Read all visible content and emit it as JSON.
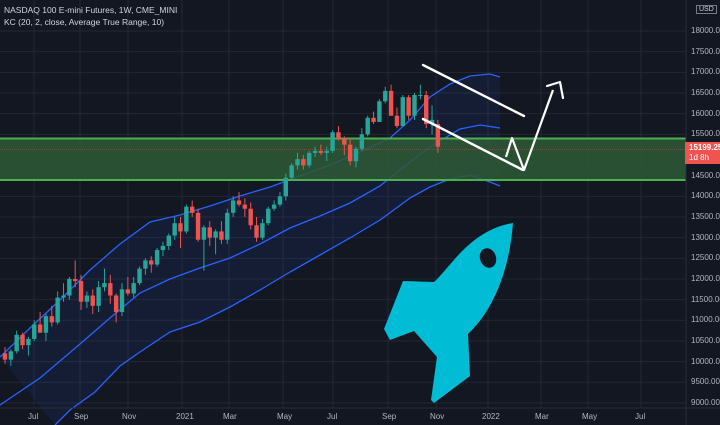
{
  "header": {
    "symbol_line": "NASDAQ 100 E-mini Futures, 1W, CME_MINI",
    "indicator_line": "KC (20, 2, close, Average True Range, 10)"
  },
  "price_axis": {
    "currency": "USD",
    "labels": [
      "18000.00",
      "17500.00",
      "17000.00",
      "16500.00",
      "16000.00",
      "15500.00",
      "14500.00",
      "14000.00",
      "13500.00",
      "13000.00",
      "12500.00",
      "12000.00",
      "11500.00",
      "11000.00",
      "10500.00",
      "10000.00",
      "9500.00",
      "9000.00"
    ],
    "current_price": "15199.25",
    "countdown": "1d 8h"
  },
  "time_axis": {
    "labels": [
      "Jul",
      "Sep",
      "Nov",
      "2021",
      "Mar",
      "May",
      "Jul",
      "Sep",
      "Nov",
      "2022",
      "Mar",
      "May",
      "Jul"
    ]
  },
  "colors": {
    "background": "#131722",
    "grid": "#242733",
    "up": "#26a69a",
    "down": "#ef5350",
    "keltner": "#2962ff",
    "zone_fill": "#2e5a36",
    "zone_border": "#4caf50",
    "rocket": "#00bcd4",
    "drawings": "#ffffff"
  },
  "chart_data": {
    "type": "candlestick",
    "title": "NASDAQ 100 E-mini Futures, 1W, CME_MINI",
    "indicator": "Keltner Channel (20, 2, close, ATR 10)",
    "x_ticks": [
      "Jul",
      "Sep",
      "Nov",
      "2021",
      "Mar",
      "May",
      "Jul",
      "Sep",
      "Nov",
      "2022",
      "Mar",
      "May",
      "Jul"
    ],
    "y_ticks": [
      9000,
      9500,
      10000,
      10500,
      11000,
      11500,
      12000,
      12500,
      13000,
      13500,
      14000,
      14500,
      15000,
      15500,
      16000,
      16500,
      17000,
      17500,
      18000
    ],
    "ylim": [
      8900,
      18300
    ],
    "last_price": 15199.25,
    "support_zone": [
      14450,
      15550
    ],
    "candles": [
      [
        10200,
        10350,
        9950,
        10050
      ],
      [
        10050,
        10300,
        9900,
        10250
      ],
      [
        10250,
        10750,
        10200,
        10650
      ],
      [
        10650,
        10700,
        10300,
        10400
      ],
      [
        10400,
        10600,
        10150,
        10550
      ],
      [
        10550,
        11000,
        10500,
        10900
      ],
      [
        10900,
        11200,
        10700,
        10700
      ],
      [
        10700,
        11150,
        10500,
        11100
      ],
      [
        11100,
        11350,
        10850,
        10950
      ],
      [
        10950,
        11700,
        10900,
        11550
      ],
      [
        11550,
        11900,
        11450,
        11600
      ],
      [
        11600,
        12050,
        11500,
        12000
      ],
      [
        12000,
        12450,
        11800,
        11950
      ],
      [
        11950,
        12100,
        11250,
        11450
      ],
      [
        11450,
        11700,
        11300,
        11600
      ],
      [
        11600,
        11750,
        11150,
        11350
      ],
      [
        11350,
        11950,
        11200,
        11800
      ],
      [
        11800,
        12250,
        11700,
        11900
      ],
      [
        11900,
        12100,
        11400,
        11600
      ],
      [
        11600,
        11650,
        10950,
        11200
      ],
      [
        11200,
        11900,
        11100,
        11750
      ],
      [
        11750,
        12050,
        11600,
        11650
      ],
      [
        11650,
        12050,
        11550,
        11900
      ],
      [
        11900,
        12300,
        11850,
        12250
      ],
      [
        12250,
        12500,
        12100,
        12450
      ],
      [
        12450,
        12550,
        12150,
        12350
      ],
      [
        12350,
        12750,
        12300,
        12700
      ],
      [
        12700,
        12900,
        12550,
        12800
      ],
      [
        12800,
        13100,
        12700,
        13050
      ],
      [
        13050,
        13500,
        12950,
        13350
      ],
      [
        13350,
        13500,
        12750,
        13150
      ],
      [
        13150,
        13800,
        13100,
        13750
      ],
      [
        13750,
        13900,
        13500,
        13600
      ],
      [
        13600,
        13700,
        12900,
        12950
      ],
      [
        12950,
        13300,
        12200,
        13250
      ],
      [
        13250,
        13400,
        12800,
        13000
      ],
      [
        13000,
        13200,
        12600,
        13150
      ],
      [
        13150,
        13400,
        12850,
        12950
      ],
      [
        12950,
        13700,
        12850,
        13600
      ],
      [
        13600,
        14000,
        13500,
        13900
      ],
      [
        13900,
        14100,
        13750,
        13800
      ],
      [
        13800,
        13950,
        13500,
        13700
      ],
      [
        13700,
        13850,
        13200,
        13300
      ],
      [
        13300,
        13500,
        12900,
        13000
      ],
      [
        13000,
        13450,
        12950,
        13350
      ],
      [
        13350,
        13750,
        13300,
        13700
      ],
      [
        13700,
        13900,
        13650,
        13800
      ],
      [
        13800,
        14100,
        13750,
        14000
      ],
      [
        14000,
        14550,
        13900,
        14450
      ],
      [
        14450,
        14800,
        14400,
        14750
      ],
      [
        14750,
        15050,
        14650,
        14900
      ],
      [
        14900,
        15000,
        14650,
        14750
      ],
      [
        14750,
        15100,
        14700,
        15050
      ],
      [
        15050,
        15200,
        14950,
        15100
      ],
      [
        15100,
        15250,
        15000,
        15050
      ],
      [
        15050,
        15200,
        14850,
        15100
      ],
      [
        15100,
        15600,
        15050,
        15550
      ],
      [
        15550,
        15700,
        15350,
        15400
      ],
      [
        15400,
        15450,
        15000,
        15250
      ],
      [
        15250,
        15400,
        14750,
        14850
      ],
      [
        14850,
        15200,
        14700,
        15150
      ],
      [
        15150,
        15650,
        15100,
        15500
      ],
      [
        15500,
        15950,
        15450,
        15900
      ],
      [
        15900,
        16050,
        15750,
        15800
      ],
      [
        15800,
        16350,
        15800,
        16300
      ],
      [
        16300,
        16650,
        16250,
        16550
      ],
      [
        16550,
        16700,
        15950,
        15950
      ],
      [
        15950,
        16150,
        15650,
        15700
      ],
      [
        15700,
        16450,
        15700,
        16400
      ],
      [
        16400,
        16450,
        15850,
        15950
      ],
      [
        15950,
        16500,
        15850,
        16450
      ],
      [
        16450,
        16700,
        16350,
        16450
      ],
      [
        16450,
        16550,
        15650,
        15750
      ],
      [
        15750,
        16200,
        15500,
        15850
      ],
      [
        15750,
        15850,
        15050,
        15200
      ]
    ],
    "keltner_upper": "rising channel from ~10500 (Jul 2020) to ~17100 (Dec 2021)",
    "keltner_middle": "rising from ~9700 to ~15800",
    "keltner_lower": "rising from ~8900 to ~14450",
    "annotations": [
      "descending channel lines",
      "zig-zag projection with upward arrow to ~17000",
      "rocket icon"
    ]
  }
}
